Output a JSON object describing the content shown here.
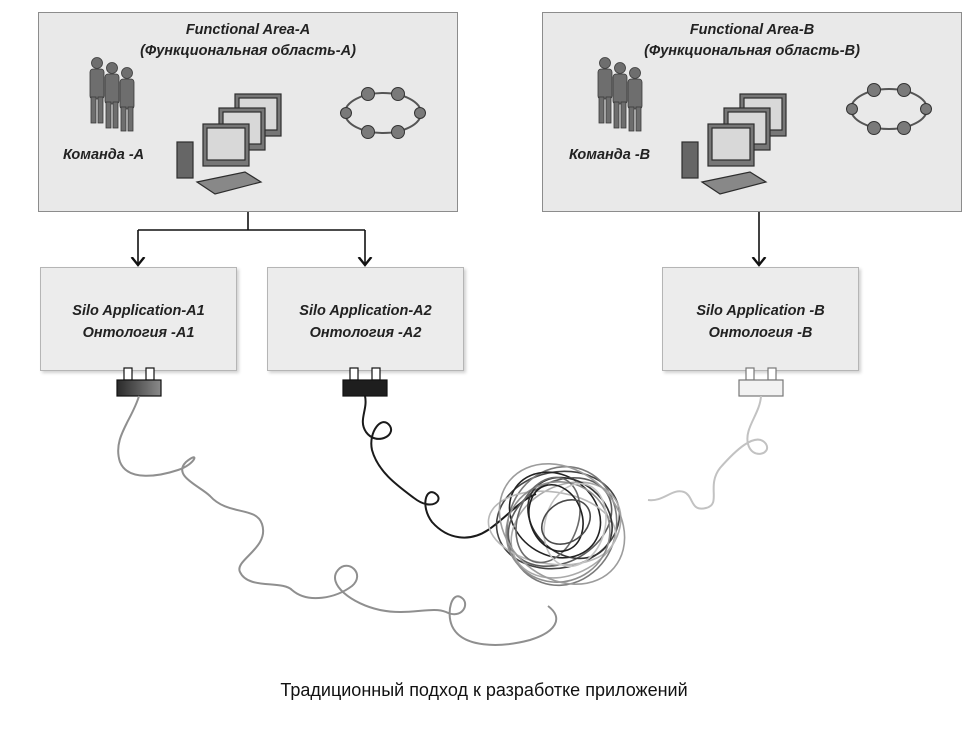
{
  "areas": [
    {
      "title": "Functional Area-A",
      "subtitle": "(Функциональная область-A)",
      "team": "Команда -A"
    },
    {
      "title": "Functional Area-B",
      "subtitle": "(Функциональная область-B)",
      "team": "Команда -B"
    }
  ],
  "silos": [
    {
      "app": "Silo Application-A1",
      "ontology": "Онтология -A1"
    },
    {
      "app": "Silo Application-A2",
      "ontology": "Онтология -A2"
    },
    {
      "app": "Silo Application -B",
      "ontology": "Онтология -B"
    }
  ],
  "caption": "Традиционный подход к разработке приложений",
  "colors": {
    "box": "#e9e9e9",
    "border": "#8c8c8c",
    "cable_dark": "#1a1a1a",
    "cable_mid": "#8a8a8a",
    "cable_light": "#bdbdbd"
  }
}
